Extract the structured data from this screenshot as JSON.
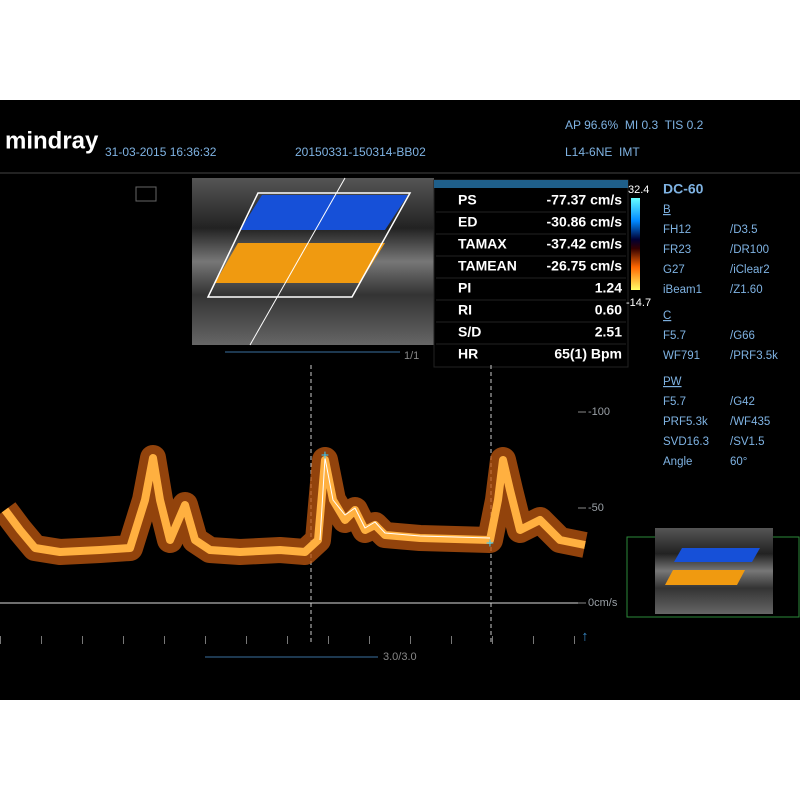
{
  "header": {
    "brand": "mindray",
    "datetime": "31-03-2015 16:36:32",
    "study_id": "20150331-150314-BB02",
    "acoustic_power": "AP 96.6%  MI 0.3  TIS 0.2",
    "probe": "L14-6NE  IMT"
  },
  "measurements": [
    [
      "PS",
      "-77.37 cm/s"
    ],
    [
      "ED",
      "-30.86 cm/s"
    ],
    [
      "TAMAX",
      "-37.42 cm/s"
    ],
    [
      "TAMEAN",
      "-26.75 cm/s"
    ],
    [
      "PI",
      "1.24"
    ],
    [
      "RI",
      "0.60"
    ],
    [
      "S/D",
      "2.51"
    ],
    [
      "HR",
      "65(1) Bpm"
    ]
  ],
  "color_scale": {
    "max": "32.4",
    "min": "-14.7"
  },
  "settings": {
    "mode": "DC-60",
    "sections": [
      {
        "name": "B",
        "rows": [
          [
            "FH12",
            "/D3.5"
          ],
          [
            "FR23",
            "/DR100"
          ],
          [
            "G27",
            "/iClear2"
          ],
          [
            "iBeam1",
            "/Z1.60"
          ]
        ]
      },
      {
        "name": "C",
        "rows": [
          [
            "F5.7",
            "/G66"
          ],
          [
            "WF791",
            "/PRF3.5k"
          ]
        ]
      },
      {
        "name": "PW",
        "rows": [
          [
            "F5.7",
            "/G42"
          ],
          [
            "PRF5.3k",
            "/WF435"
          ],
          [
            "SVD16.3",
            "/SV1.5"
          ],
          [
            "Angle",
            "60°"
          ]
        ]
      }
    ]
  },
  "image_frame": "1/1",
  "spectrum_frame": "3.0/3.0",
  "velocity_scale": [
    "-100",
    "-50",
    "0cm/s"
  ]
}
